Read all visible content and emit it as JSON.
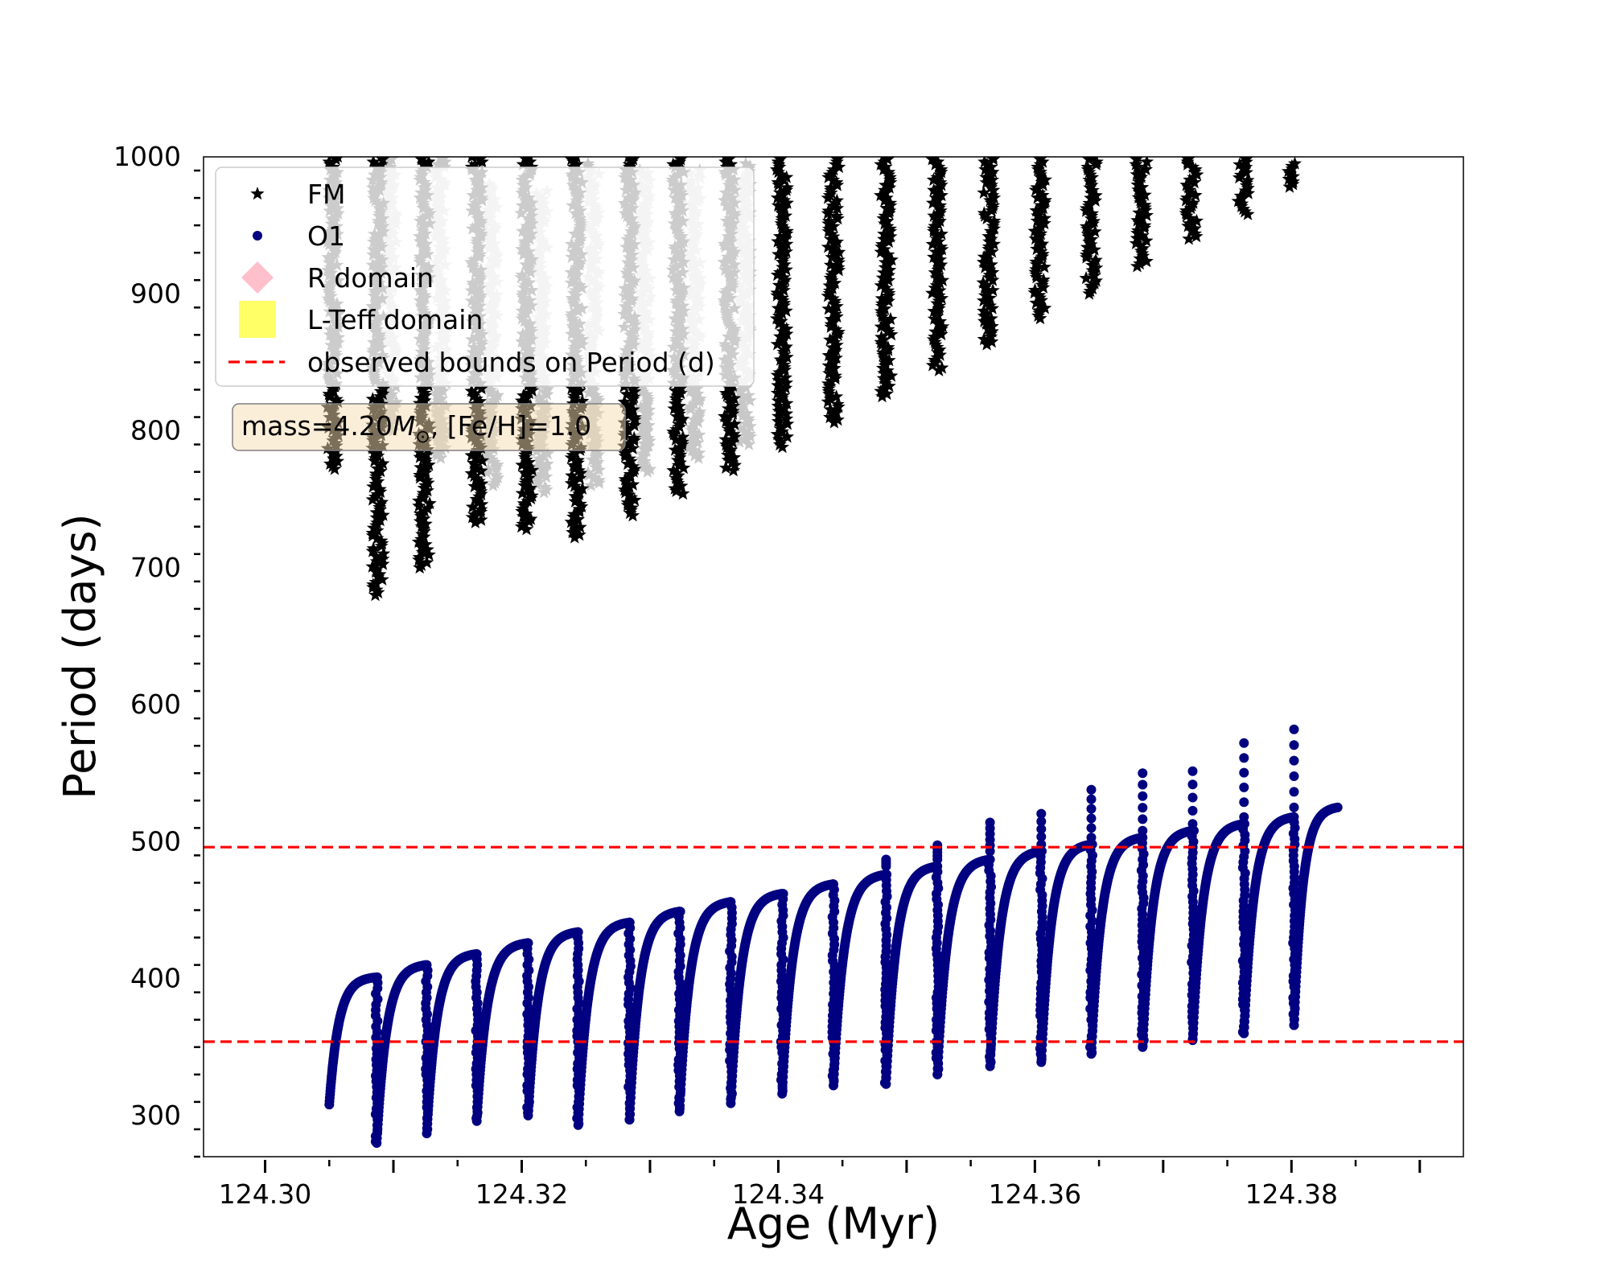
{
  "chart_data": {
    "type": "scatter",
    "xlabel": "Age (Myr)",
    "ylabel": "Period (days)",
    "xlim": [
      124.2952,
      124.3934
    ],
    "ylim": [
      270,
      1000
    ],
    "x_ticks": [
      124.3,
      124.32,
      124.34,
      124.36,
      124.38
    ],
    "x_tick_labels": [
      "124.30",
      "124.32",
      "124.34",
      "124.36",
      "124.38"
    ],
    "y_ticks": [
      300,
      400,
      500,
      600,
      700,
      800,
      900,
      1000
    ],
    "y_tick_labels": [
      "300",
      "400",
      "500",
      "600",
      "700",
      "800",
      "900",
      "1000"
    ],
    "legend_position": "upper-left",
    "legend": [
      {
        "label": "FM",
        "marker": "star",
        "color": "#000000"
      },
      {
        "label": "O1",
        "marker": "circle",
        "color": "#000080"
      },
      {
        "label": "R domain",
        "marker": "diamond",
        "color": "#ffc0cb"
      },
      {
        "label": "L-Teff domain",
        "marker": "square",
        "color": "#ffff66"
      },
      {
        "label": "observed bounds on Period (d)",
        "marker": "dashed-line",
        "color": "#ff0000"
      }
    ],
    "annotation": {
      "prefix": "mass=4.20",
      "symbol": "M",
      "subscript": "⊙",
      "suffix": ", [Fe/H]=1.0"
    },
    "observed_bounds": [
      354,
      496
    ],
    "series": [
      {
        "name": "FM",
        "marker": "star",
        "color": "#000000",
        "columns": [
          {
            "x": 124.3053,
            "min": 772,
            "max": 1000
          },
          {
            "x": 124.3088,
            "min": 680,
            "max": 1000
          },
          {
            "x": 124.3124,
            "min": 700,
            "max": 1000
          },
          {
            "x": 124.3165,
            "min": 733,
            "max": 1000
          },
          {
            "x": 124.3204,
            "min": 728,
            "max": 1000
          },
          {
            "x": 124.3243,
            "min": 722,
            "max": 1000
          },
          {
            "x": 124.3284,
            "min": 738,
            "max": 1000
          },
          {
            "x": 124.3322,
            "min": 754,
            "max": 1000
          },
          {
            "x": 124.3362,
            "min": 771,
            "max": 1000
          },
          {
            "x": 124.3403,
            "min": 788,
            "max": 1000
          },
          {
            "x": 124.3443,
            "min": 806,
            "max": 1000
          },
          {
            "x": 124.3484,
            "min": 825,
            "max": 1000
          },
          {
            "x": 124.3524,
            "min": 844,
            "max": 1000
          },
          {
            "x": 124.3564,
            "min": 863,
            "max": 1000
          },
          {
            "x": 124.3604,
            "min": 882,
            "max": 1000
          },
          {
            "x": 124.3644,
            "min": 900,
            "max": 1000
          },
          {
            "x": 124.3683,
            "min": 920,
            "max": 1000
          },
          {
            "x": 124.3722,
            "min": 940,
            "max": 1000
          },
          {
            "x": 124.3762,
            "min": 958,
            "max": 1000
          },
          {
            "x": 124.38,
            "min": 978,
            "max": 995
          }
        ]
      },
      {
        "name": "FM (outside domain)",
        "marker": "star",
        "color": "#c8c8c8",
        "columns": [
          {
            "x": 124.3098,
            "min": 800,
            "max": 1000
          },
          {
            "x": 124.3137,
            "min": 780,
            "max": 1000
          },
          {
            "x": 124.3177,
            "min": 760,
            "max": 980
          },
          {
            "x": 124.3216,
            "min": 755,
            "max": 975
          },
          {
            "x": 124.3256,
            "min": 760,
            "max": 995
          },
          {
            "x": 124.3296,
            "min": 770,
            "max": 990
          },
          {
            "x": 124.3335,
            "min": 780,
            "max": 990
          },
          {
            "x": 124.3374,
            "min": 790,
            "max": 995
          }
        ]
      },
      {
        "name": "O1",
        "marker": "circle",
        "color": "#000080",
        "cycles": [
          {
            "start": 124.305,
            "end": 124.3087,
            "low": 308,
            "high": 401,
            "spike": 0
          },
          {
            "start": 124.3087,
            "end": 124.3126,
            "low": 280,
            "high": 410,
            "spike": 0
          },
          {
            "start": 124.3126,
            "end": 124.3165,
            "low": 287,
            "high": 418,
            "spike": 0
          },
          {
            "start": 124.3165,
            "end": 124.3205,
            "low": 296,
            "high": 426,
            "spike": 0
          },
          {
            "start": 124.3205,
            "end": 124.3244,
            "low": 300,
            "high": 434,
            "spike": 0
          },
          {
            "start": 124.3244,
            "end": 124.3284,
            "low": 293,
            "high": 441,
            "spike": 0
          },
          {
            "start": 124.3284,
            "end": 124.3323,
            "low": 297,
            "high": 449,
            "spike": 0
          },
          {
            "start": 124.3323,
            "end": 124.3363,
            "low": 303,
            "high": 456,
            "spike": 0
          },
          {
            "start": 124.3363,
            "end": 124.3403,
            "low": 309,
            "high": 462,
            "spike": 0
          },
          {
            "start": 124.3403,
            "end": 124.3443,
            "low": 316,
            "high": 469,
            "spike": 0
          },
          {
            "start": 124.3443,
            "end": 124.3484,
            "low": 322,
            "high": 476,
            "spike": 472
          },
          {
            "start": 124.3484,
            "end": 124.3524,
            "low": 323,
            "high": 482,
            "spike": 487
          },
          {
            "start": 124.3524,
            "end": 124.3565,
            "low": 330,
            "high": 487,
            "spike": 500
          },
          {
            "start": 124.3565,
            "end": 124.3605,
            "low": 336,
            "high": 493,
            "spike": 514
          },
          {
            "start": 124.3605,
            "end": 124.3644,
            "low": 339,
            "high": 498,
            "spike": 526
          },
          {
            "start": 124.3644,
            "end": 124.3684,
            "low": 345,
            "high": 503,
            "spike": 538
          },
          {
            "start": 124.3684,
            "end": 124.3723,
            "low": 350,
            "high": 508,
            "spike": 550
          },
          {
            "start": 124.3723,
            "end": 124.3763,
            "low": 355,
            "high": 513,
            "spike": 561
          },
          {
            "start": 124.3763,
            "end": 124.3802,
            "low": 360,
            "high": 518,
            "spike": 572
          },
          {
            "start": 124.3802,
            "end": 124.3836,
            "low": 366,
            "high": 525,
            "spike": 582
          }
        ]
      }
    ]
  }
}
